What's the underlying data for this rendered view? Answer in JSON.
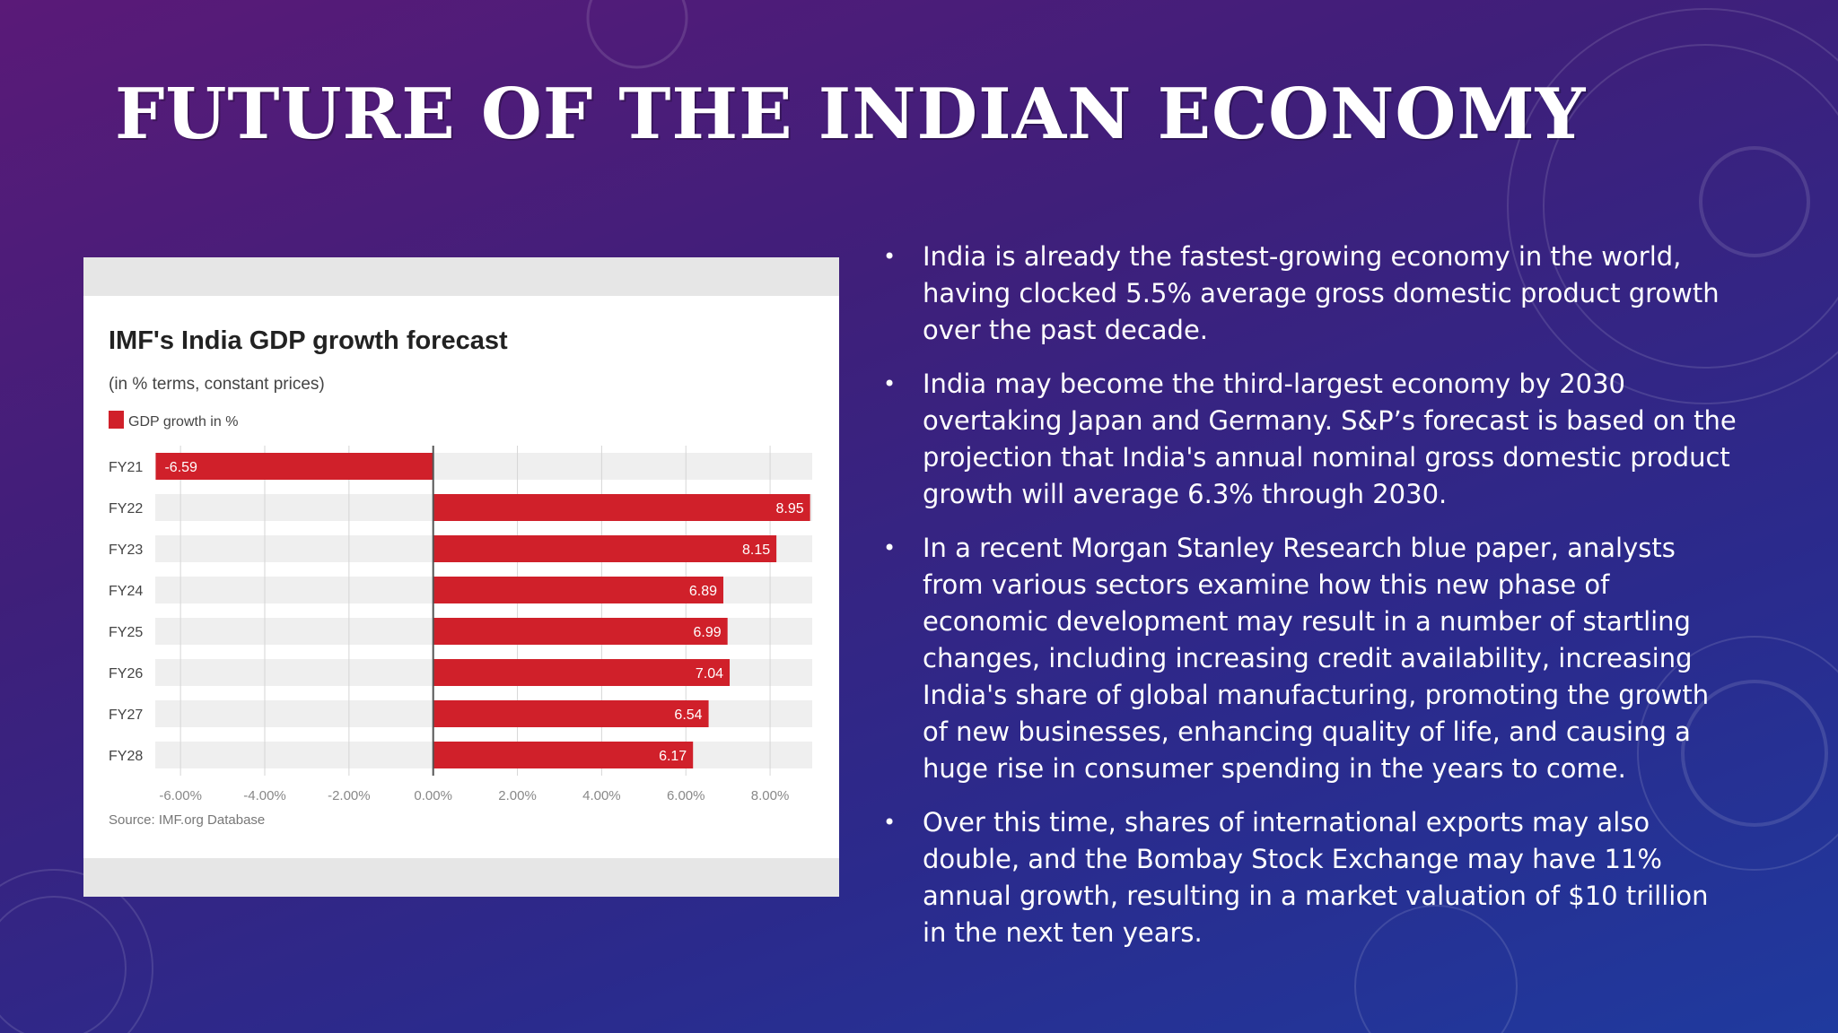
{
  "slide": {
    "title": "Future of the Indian Economy"
  },
  "bullets": [
    "India is already the fastest-growing economy in the world, having clocked 5.5% average gross domestic product growth over the past decade.",
    "India may become the third-largest economy by 2030 overtaking Japan and Germany. S&P’s forecast is based on the projection that India's annual nominal gross domestic product growth will average 6.3% through 2030.",
    "In a recent Morgan Stanley Research blue paper, analysts from various sectors examine how this new phase of economic development may result in a number of startling changes, including increasing credit availability, increasing India's share of global manufacturing, promoting the growth of new businesses, enhancing quality of life, and causing a huge rise in consumer spending in the years to come.",
    "Over this time, shares of international exports may also double, and the Bombay Stock Exchange may have 11% annual growth, resulting in a market valuation of $10 trillion in the next ten years."
  ],
  "colors": {
    "bar": "#d0202a",
    "text_on_slide": "#ffffff"
  },
  "chart_data": {
    "type": "bar",
    "orientation": "horizontal",
    "title": "IMF's India GDP growth forecast",
    "subtitle": "(in % terms, constant prices)",
    "legend": "GDP growth in %",
    "source": "Source: IMF.org Database",
    "categories": [
      "FY21",
      "FY22",
      "FY23",
      "FY24",
      "FY25",
      "FY26",
      "FY27",
      "FY28"
    ],
    "series": [
      {
        "name": "GDP growth in %",
        "values": [
          -6.59,
          8.95,
          8.15,
          6.89,
          6.99,
          7.04,
          6.54,
          6.17
        ],
        "labels": [
          "-6.59",
          "8.95",
          "8.15",
          "6.89",
          "6.99",
          "7.04",
          "6.54",
          "6.17"
        ]
      }
    ],
    "xlim": [
      -6.6,
      9.0
    ],
    "xticks": [
      -6,
      -4,
      -2,
      0,
      2,
      4,
      6,
      8
    ],
    "xtick_labels": [
      "-6.00%",
      "-4.00%",
      "-2.00%",
      "0.00%",
      "2.00%",
      "4.00%",
      "6.00%",
      "8.00%"
    ],
    "grid": true,
    "legend_position": "top-left"
  }
}
